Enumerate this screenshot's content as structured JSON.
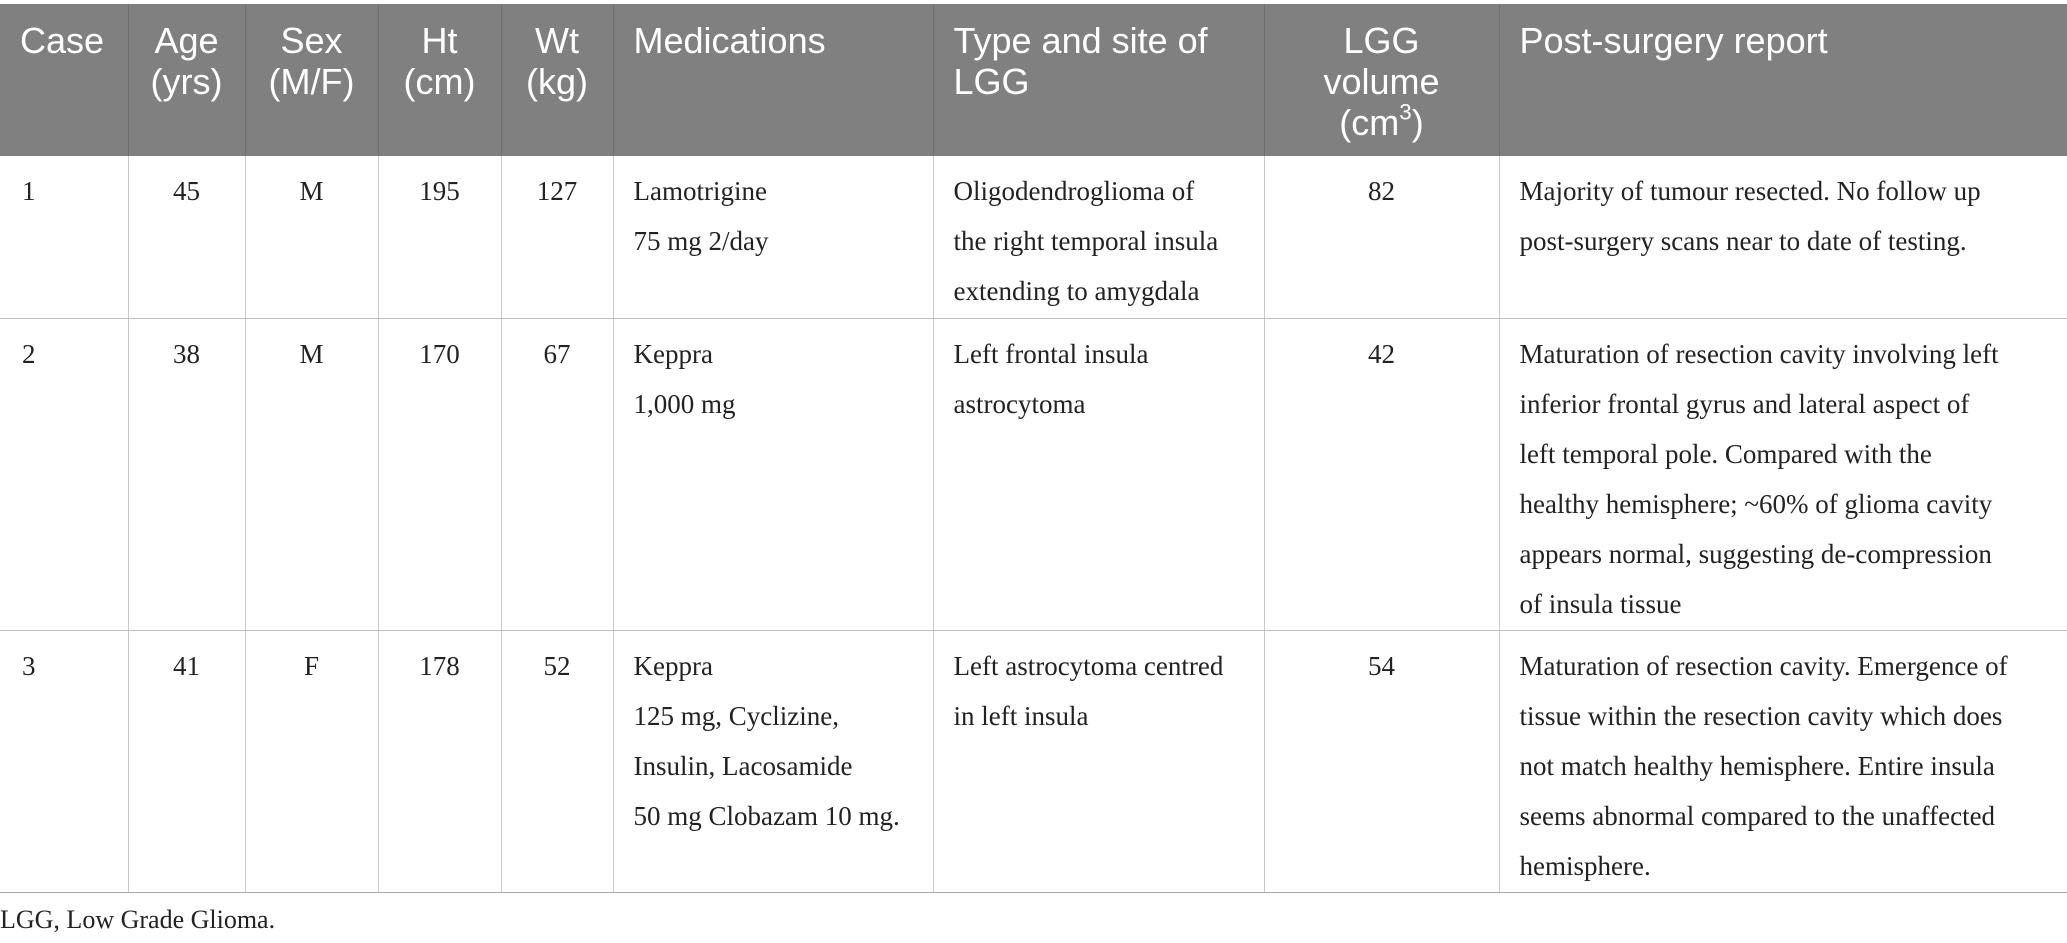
{
  "table": {
    "headers": [
      {
        "key": "case",
        "lines": [
          "Case"
        ]
      },
      {
        "key": "age",
        "lines": [
          "Age",
          "(yrs)"
        ]
      },
      {
        "key": "sex",
        "lines": [
          "Sex",
          "(M/F)"
        ]
      },
      {
        "key": "ht",
        "lines": [
          "Ht",
          "(cm)"
        ]
      },
      {
        "key": "wt",
        "lines": [
          "Wt",
          "(kg)"
        ]
      },
      {
        "key": "medications",
        "lines": [
          "Medications"
        ]
      },
      {
        "key": "type_site",
        "lines": [
          "Type and site of",
          "LGG"
        ]
      },
      {
        "key": "volume",
        "lines": [
          "LGG",
          "volume"
        ],
        "unit_prefix": "(cm",
        "unit_sup": "3",
        "unit_suffix": ")"
      },
      {
        "key": "report",
        "lines": [
          "Post-surgery report"
        ]
      }
    ],
    "rows": [
      {
        "case": "1",
        "age": "45",
        "sex": "M",
        "ht": "195",
        "wt": "127",
        "medications": [
          "Lamotrigine",
          "75 mg 2/day"
        ],
        "type_site": [
          "Oligodendroglioma of",
          "the right temporal insula",
          "extending to amygdala"
        ],
        "volume": "82",
        "report": [
          "Majority of tumour resected. No follow up",
          "post-surgery scans near to date of testing."
        ]
      },
      {
        "case": "2",
        "age": "38",
        "sex": "M",
        "ht": "170",
        "wt": "67",
        "medications": [
          "Keppra",
          "1,000 mg"
        ],
        "type_site": [
          "Left frontal insula",
          "astrocytoma"
        ],
        "volume": "42",
        "report": [
          "Maturation of resection cavity involving left",
          "inferior frontal gyrus and lateral aspect of",
          "left temporal pole. Compared with the",
          "healthy hemisphere; ~60% of glioma cavity",
          "appears normal, suggesting de-compression",
          "of insula tissue"
        ]
      },
      {
        "case": "3",
        "age": "41",
        "sex": "F",
        "ht": "178",
        "wt": "52",
        "medications": [
          "Keppra",
          "125 mg, Cyclizine,",
          "Insulin, Lacosamide",
          "50 mg Clobazam 10 mg."
        ],
        "type_site": [
          "Left astrocytoma centred",
          "in left insula"
        ],
        "volume": "54",
        "report": [
          "Maturation of resection cavity. Emergence of",
          "tissue within the resection cavity which does",
          "not match healthy hemisphere. Entire insula",
          "seems abnormal compared to the unaffected",
          "hemisphere."
        ]
      }
    ]
  },
  "footnote": "LGG, Low Grade Glioma."
}
